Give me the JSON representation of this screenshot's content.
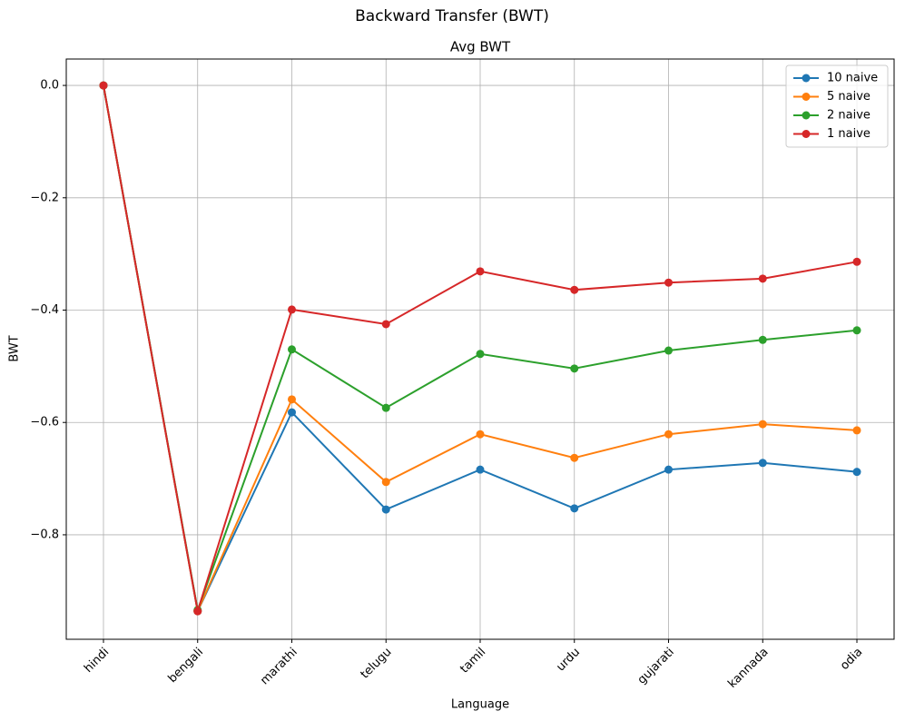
{
  "chart_data": {
    "type": "line",
    "suptitle": "Backward Transfer (BWT)",
    "title": "Avg BWT",
    "x_label": "Language",
    "y_label": "BWT",
    "categories": [
      "hindi",
      "bengali",
      "marathi",
      "telugu",
      "tamil",
      "urdu",
      "gujarati",
      "kannada",
      "odia"
    ],
    "series": [
      {
        "name": "10 naive",
        "color": "#1f77b4",
        "values": [
          0,
          -0.936,
          -0.582,
          -0.755,
          -0.684,
          -0.753,
          -0.684,
          -0.672,
          -0.688
        ]
      },
      {
        "name": "5 naive",
        "color": "#ff7f0e",
        "values": [
          0,
          -0.936,
          -0.559,
          -0.706,
          -0.621,
          -0.663,
          -0.621,
          -0.603,
          -0.614
        ]
      },
      {
        "name": "2 naive",
        "color": "#2ca02c",
        "values": [
          0,
          -0.934,
          -0.47,
          -0.574,
          -0.478,
          -0.504,
          -0.472,
          -0.453,
          -0.436
        ]
      },
      {
        "name": "1 naive",
        "color": "#d62728",
        "values": [
          0,
          -0.936,
          -0.399,
          -0.425,
          -0.331,
          -0.364,
          -0.351,
          -0.344,
          -0.314
        ]
      }
    ],
    "ylim": [
      -0.986,
      0.047
    ],
    "yticks": [
      {
        "value": 0.0,
        "label": "0.0"
      },
      {
        "value": -0.2,
        "label": "−0.2"
      },
      {
        "value": -0.4,
        "label": "−0.4"
      },
      {
        "value": -0.6,
        "label": "−0.6"
      },
      {
        "value": -0.8,
        "label": "−0.8"
      }
    ],
    "grid": true,
    "legend_position": "upper-right"
  }
}
